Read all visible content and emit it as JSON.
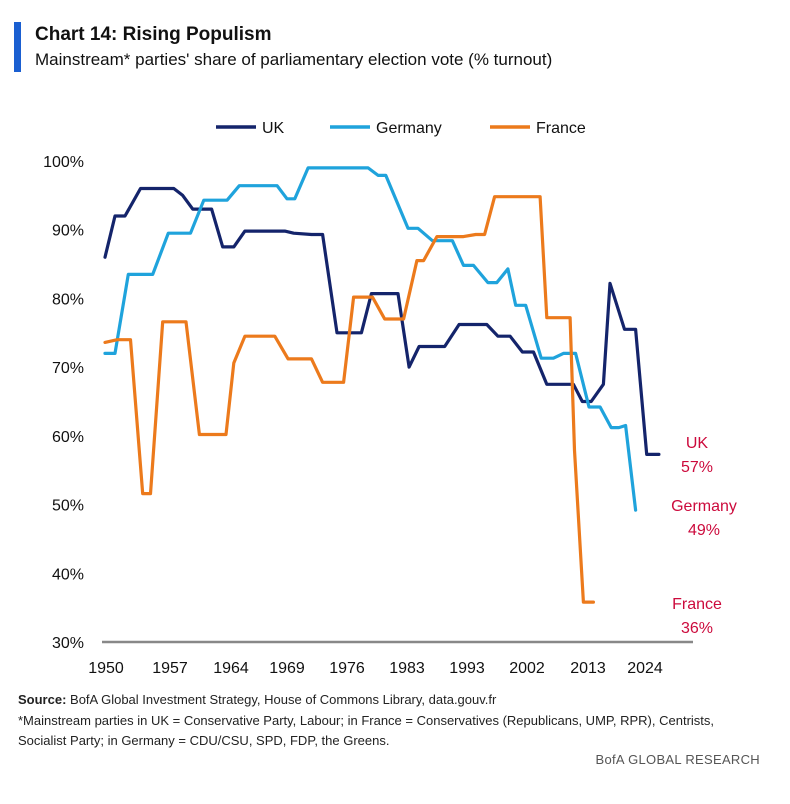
{
  "header": {
    "title": "Chart 14: Rising Populism",
    "subtitle": "Mainstream* parties' share of parliamentary election vote (% turnout)"
  },
  "chart_data": {
    "type": "line",
    "title": "Chart 14: Rising Populism",
    "subtitle": "Mainstream* parties' share of parliamentary election vote (% turnout)",
    "xlabel": "",
    "ylabel": "",
    "xlim": [
      1950,
      2024
    ],
    "ylim": [
      30,
      100
    ],
    "x_ticks": [
      "1950",
      "1957",
      "1964",
      "1969",
      "1976",
      "1983",
      "1993",
      "2002",
      "2013",
      "2024"
    ],
    "y_ticks": [
      "30%",
      "40%",
      "50%",
      "60%",
      "70%",
      "80%",
      "90%",
      "100%"
    ],
    "legend_position": "top",
    "grid": false,
    "series": [
      {
        "name": "UK",
        "color": "#14246b",
        "points": [
          [
            0,
            86
          ],
          [
            0.9,
            92
          ],
          [
            1.8,
            92
          ],
          [
            3.2,
            96
          ],
          [
            6.2,
            96
          ],
          [
            7.0,
            95
          ],
          [
            7.9,
            93
          ],
          [
            9.6,
            93
          ],
          [
            10.6,
            87.5
          ],
          [
            11.6,
            87.5
          ],
          [
            12.6,
            89.8
          ],
          [
            16.2,
            89.8
          ],
          [
            17.0,
            89.5
          ],
          [
            18.6,
            89.3
          ],
          [
            19.6,
            89.3
          ],
          [
            20.9,
            75
          ],
          [
            23.1,
            75
          ],
          [
            24.0,
            80.7
          ],
          [
            26.4,
            80.7
          ],
          [
            27.4,
            70
          ],
          [
            28.3,
            73
          ],
          [
            30.6,
            73
          ],
          [
            31.9,
            76.2
          ],
          [
            34.4,
            76.2
          ],
          [
            35.4,
            74.5
          ],
          [
            36.5,
            74.5
          ],
          [
            37.6,
            72.2
          ],
          [
            38.6,
            72.2
          ],
          [
            39.8,
            67.5
          ],
          [
            42.2,
            67.5
          ],
          [
            43.0,
            65
          ],
          [
            43.8,
            65
          ],
          [
            44.9,
            67.5
          ],
          [
            45.5,
            82.2
          ],
          [
            46.8,
            75.5
          ],
          [
            47.8,
            75.5
          ],
          [
            48.8,
            57.3
          ],
          [
            49.9,
            57.3
          ]
        ]
      },
      {
        "name": "Germany",
        "color": "#1fa3dc",
        "points": [
          [
            0,
            72
          ],
          [
            0.9,
            72
          ],
          [
            2.1,
            83.5
          ],
          [
            4.3,
            83.5
          ],
          [
            5.7,
            89.5
          ],
          [
            7.7,
            89.5
          ],
          [
            8.9,
            94.3
          ],
          [
            11.0,
            94.3
          ],
          [
            12.1,
            96.4
          ],
          [
            15.5,
            96.4
          ],
          [
            16.4,
            94.5
          ],
          [
            17.1,
            94.5
          ],
          [
            18.3,
            99
          ],
          [
            23.7,
            99
          ],
          [
            24.6,
            97.9
          ],
          [
            25.3,
            97.9
          ],
          [
            27.3,
            90.2
          ],
          [
            28.2,
            90.2
          ],
          [
            29.5,
            88.4
          ],
          [
            31.3,
            88.4
          ],
          [
            32.3,
            84.8
          ],
          [
            33.2,
            84.8
          ],
          [
            34.5,
            82.3
          ],
          [
            35.3,
            82.3
          ],
          [
            36.3,
            84.3
          ],
          [
            37.0,
            79
          ],
          [
            37.9,
            79
          ],
          [
            39.3,
            71.3
          ],
          [
            40.4,
            71.3
          ],
          [
            41.3,
            72
          ],
          [
            42.4,
            72
          ],
          [
            43.6,
            64.2
          ],
          [
            44.6,
            64.2
          ],
          [
            45.6,
            61.2
          ],
          [
            46.3,
            61.2
          ],
          [
            46.9,
            61.5
          ],
          [
            47.8,
            49.2
          ]
        ]
      },
      {
        "name": "France",
        "color": "#ec7a1c",
        "points": [
          [
            0,
            73.6
          ],
          [
            1.1,
            74
          ],
          [
            2.3,
            74
          ],
          [
            3.4,
            51.6
          ],
          [
            4.1,
            51.6
          ],
          [
            5.2,
            76.6
          ],
          [
            7.3,
            76.6
          ],
          [
            8.5,
            60.2
          ],
          [
            10.9,
            60.2
          ],
          [
            11.6,
            70.6
          ],
          [
            12.6,
            74.5
          ],
          [
            15.3,
            74.5
          ],
          [
            16.5,
            71.2
          ],
          [
            18.6,
            71.2
          ],
          [
            19.6,
            67.8
          ],
          [
            21.5,
            67.8
          ],
          [
            22.4,
            80.2
          ],
          [
            24.1,
            80.2
          ],
          [
            25.2,
            77
          ],
          [
            26.9,
            77
          ],
          [
            28.1,
            85.5
          ],
          [
            28.7,
            85.5
          ],
          [
            29.9,
            89
          ],
          [
            32.3,
            89
          ],
          [
            33.4,
            89.3
          ],
          [
            34.2,
            89.3
          ],
          [
            35.1,
            94.8
          ],
          [
            39.2,
            94.8
          ],
          [
            39.8,
            77.2
          ],
          [
            41.9,
            77.2
          ],
          [
            42.3,
            57.9
          ],
          [
            43.1,
            35.8
          ],
          [
            44.0,
            35.8
          ]
        ]
      }
    ],
    "annotations": [
      {
        "series": "UK",
        "label": "UK",
        "value": "57%"
      },
      {
        "series": "Germany",
        "label": "Germany",
        "value": "49%"
      },
      {
        "series": "France",
        "label": "France",
        "value": "36%"
      }
    ]
  },
  "footer": {
    "source_label": "Source:",
    "source_text": " BofA Global Investment Strategy, House of Commons Library, data.gouv.fr",
    "note_line1": "*Mainstream parties in UK = Conservative Party, Labour; in France = Conservatives (Republicans, UMP, RPR), Centrists,",
    "note_line2": "Socialist Party; in Germany = CDU/CSU, SPD, FDP, the Greens.",
    "brand": "BofA GLOBAL RESEARCH"
  },
  "colors": {
    "accent": "#1a5fd1",
    "annotation": "#cc0a3c",
    "axis": "#888888"
  }
}
